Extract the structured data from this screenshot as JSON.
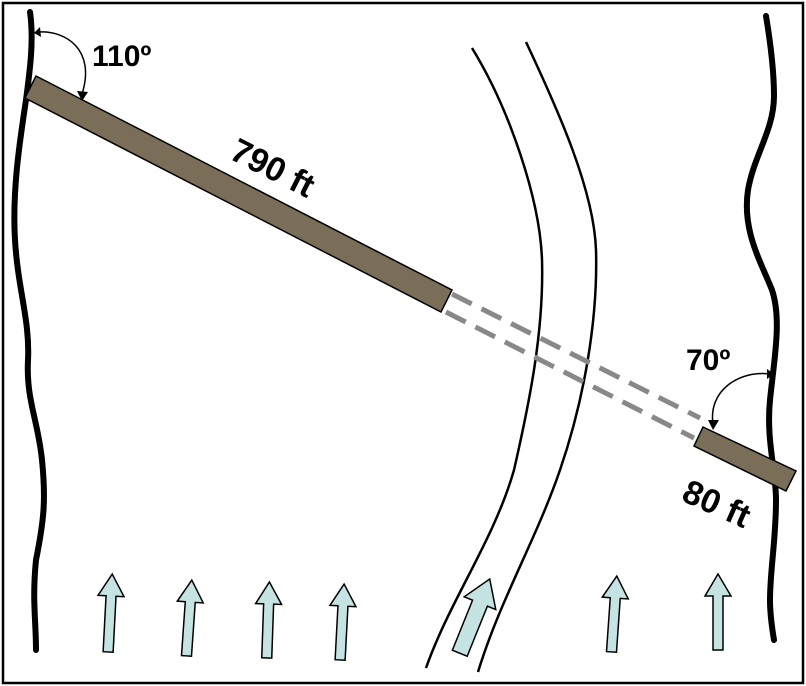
{
  "labels": {
    "left_angle": "110º",
    "right_angle": "70º",
    "long_length": "790 ft",
    "short_length": "80 ft"
  },
  "colors": {
    "background": "#ffffff",
    "frame": "#000000",
    "bank_line": "#000000",
    "channel_line": "#000000",
    "structure_fill": "#7a6e58",
    "structure_stroke": "#000000",
    "gap_dash": "#888888",
    "flow_arrow_fill": "#c5e3e3",
    "flow_arrow_stroke": "#000000"
  },
  "icons": {
    "flow_arrow": "up-arrow-icon",
    "angle_arrow": "curved-arrow-icon"
  }
}
